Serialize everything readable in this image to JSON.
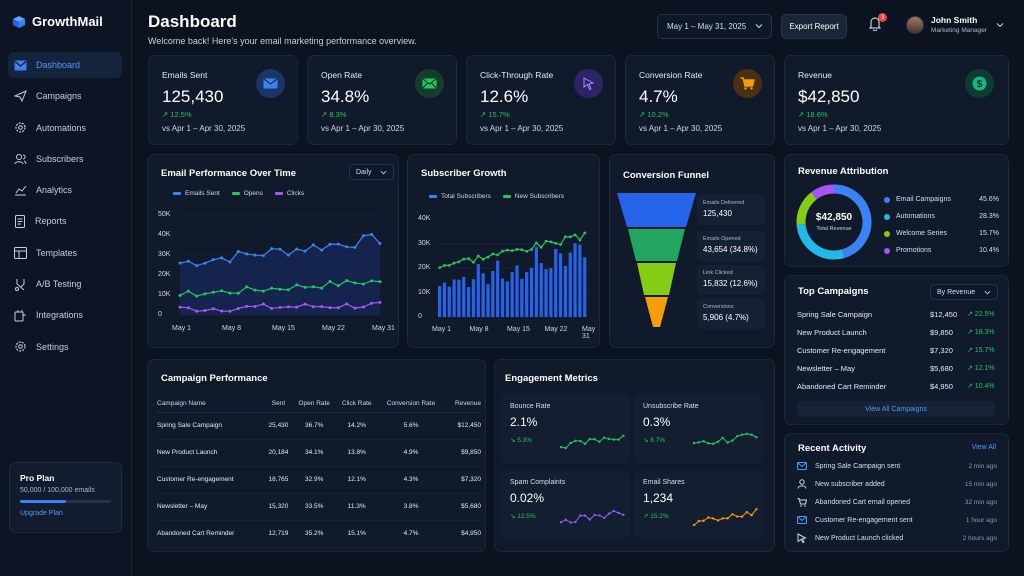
{
  "app": {
    "name": "GrowthMail",
    "accent": "#3b82f6"
  },
  "sidebar": {
    "items": [
      {
        "label": "Dashboard",
        "icon": "envelope-icon",
        "active": true
      },
      {
        "label": "Campaigns",
        "icon": "send-icon"
      },
      {
        "label": "Automations",
        "icon": "gear-icon"
      },
      {
        "label": "Subscribers",
        "icon": "users-icon"
      },
      {
        "label": "Analytics",
        "icon": "analytics-icon"
      },
      {
        "label": "Reports",
        "icon": "document-icon"
      },
      {
        "label": "Templates",
        "icon": "template-icon"
      },
      {
        "label": "A/B Testing",
        "icon": "split-icon"
      },
      {
        "label": "Integrations",
        "icon": "integration-icon"
      },
      {
        "label": "Settings",
        "icon": "settings-icon"
      }
    ],
    "plan": {
      "title": "Pro Plan",
      "usage": "50,000 / 100,000 emails",
      "usage_fraction": 0.5,
      "upgrade": "Upgrade Plan"
    }
  },
  "header": {
    "title": "Dashboard",
    "subtitle": "Welcome back! Here's your email marketing performance overview.",
    "date_range": "May 1 – May 31, 2025",
    "export": "Export Report",
    "notifications": "3",
    "user_name": "John Smith",
    "user_role": "Marketing Manager"
  },
  "stats": [
    {
      "label": "Emails Sent",
      "value": "125,430",
      "change": "↗ 12.5%",
      "sub": "vs Apr 1 – Apr 30, 2025",
      "icon": "envelope-icon",
      "color": "#3b82f6"
    },
    {
      "label": "Open Rate",
      "value": "34.8%",
      "change": "↗ 8.3%",
      "sub": "vs Apr 1 – Apr 30, 2025",
      "icon": "mail-open-icon",
      "color": "#22c55e"
    },
    {
      "label": "Click-Through Rate",
      "value": "12.6%",
      "change": "↗ 15.7%",
      "sub": "vs Apr 1 – Apr 30, 2025",
      "icon": "cursor-icon",
      "color": "#8b5cf6"
    },
    {
      "label": "Conversion Rate",
      "value": "4.7%",
      "change": "↗ 10.2%",
      "sub": "vs Apr 1 – Apr 30, 2025",
      "icon": "cart-icon",
      "color": "#f59e0b"
    },
    {
      "label": "Revenue",
      "value": "$42,850",
      "change": "↗ 18.6%",
      "sub": "vs Apr 1 – Apr 30, 2025",
      "icon": "dollar-icon",
      "color": "#10b981"
    }
  ],
  "email_perf": {
    "title": "Email Performance Over Time",
    "select": "Daily",
    "legend": [
      "Emails Sent",
      "Opens",
      "Clicks"
    ],
    "yticks": [
      "50K",
      "40K",
      "30K",
      "20K",
      "10K",
      "0"
    ],
    "xticks": [
      "May 1",
      "May 8",
      "May 15",
      "May 22",
      "May 31"
    ]
  },
  "sub_growth": {
    "title": "Subscriber Growth",
    "legend": [
      "Total Subscribers",
      "New Subscribers"
    ],
    "yticks": [
      "40K",
      "30K",
      "20K",
      "10K",
      "0"
    ],
    "xticks": [
      "May 1",
      "May 8",
      "May 15",
      "May 22",
      "May 31"
    ]
  },
  "funnel": {
    "title": "Conversion Funnel",
    "stages": [
      {
        "label": "Emails Delivered",
        "value": "125,430",
        "color": "#2563eb"
      },
      {
        "label": "Emails Opened",
        "value": "43,654 (34.8%)",
        "color": "#22a55e"
      },
      {
        "label": "Link Clicked",
        "value": "15,832 (12.6%)",
        "color": "#84cc16"
      },
      {
        "label": "Conversions",
        "value": "5,906 (4.7%)",
        "color": "#f59e0b"
      }
    ]
  },
  "revenue_attr": {
    "title": "Revenue Attribution",
    "total": "$42,850",
    "total_label": "Total Revenue",
    "items": [
      {
        "label": "Email Campaigns",
        "pct": "45.6%",
        "value": 45.6,
        "color": "#3b82f6"
      },
      {
        "label": "Automations",
        "pct": "28.3%",
        "value": 28.3,
        "color": "#22b8e8"
      },
      {
        "label": "Welcome Series",
        "pct": "15.7%",
        "value": 15.7,
        "color": "#84cc16"
      },
      {
        "label": "Promotions",
        "pct": "10.4%",
        "value": 10.4,
        "color": "#a855f7"
      }
    ]
  },
  "top_campaigns": {
    "title": "Top Campaigns",
    "select": "By Revenue",
    "rows": [
      {
        "name": "Spring Sale Campaign",
        "amount": "$12,450",
        "change": "↗ 22.5%"
      },
      {
        "name": "New Product Launch",
        "amount": "$9,850",
        "change": "↗ 18.3%"
      },
      {
        "name": "Customer Re-engagement",
        "amount": "$7,320",
        "change": "↗ 15.7%"
      },
      {
        "name": "Newsletter – May",
        "amount": "$5,680",
        "change": "↗ 12.1%"
      },
      {
        "name": "Abandoned Cart Reminder",
        "amount": "$4,950",
        "change": "↗ 10.4%"
      }
    ],
    "view_all": "View All Campaigns"
  },
  "campaign_perf": {
    "title": "Campaign Performance",
    "headers": [
      "Campaign Name",
      "Sent",
      "Open Rate",
      "Click Rate",
      "Conversion Rate",
      "Revenue"
    ],
    "rows": [
      [
        "Spring Sale Campaign",
        "25,430",
        "36.7%",
        "14.2%",
        "5.6%",
        "$12,450"
      ],
      [
        "New Product Launch",
        "20,184",
        "34.1%",
        "13.8%",
        "4.9%",
        "$9,850"
      ],
      [
        "Customer Re-engagement",
        "18,765",
        "32.9%",
        "12.1%",
        "4.3%",
        "$7,320"
      ],
      [
        "Newsletter – May",
        "15,320",
        "33.5%",
        "11.3%",
        "3.8%",
        "$5,680"
      ],
      [
        "Abandoned Cart Reminder",
        "12,719",
        "35.2%",
        "15.1%",
        "4.7%",
        "$4,950"
      ]
    ]
  },
  "engagement": {
    "title": "Engagement Metrics",
    "items": [
      {
        "label": "Bounce Rate",
        "value": "2.1%",
        "change": "↘ 5.3%",
        "color": "#22c55e"
      },
      {
        "label": "Unsubscribe Rate",
        "value": "0.3%",
        "change": "↘ 8.7%",
        "color": "#22c55e"
      },
      {
        "label": "Spam Complaints",
        "value": "0.02%",
        "change": "↘ 12.5%",
        "color": "#8b5cf6"
      },
      {
        "label": "Email Shares",
        "value": "1,234",
        "change": "↗ 15.2%",
        "color": "#f59e0b"
      }
    ]
  },
  "activity": {
    "title": "Recent Activity",
    "view_all": "View All",
    "items": [
      {
        "text": "Spring Sale Campaign sent",
        "time": "2 min ago",
        "icon": "envelope-icon"
      },
      {
        "text": "New subscriber added",
        "time": "15 min ago",
        "icon": "user-icon"
      },
      {
        "text": "Abandoned Cart email opened",
        "time": "32 min ago",
        "icon": "cart-icon"
      },
      {
        "text": "Customer Re-engagement sent",
        "time": "1 hour ago",
        "icon": "envelope-icon"
      },
      {
        "text": "New Product Launch clicked",
        "time": "2 hours ago",
        "icon": "cursor-icon"
      }
    ]
  }
}
